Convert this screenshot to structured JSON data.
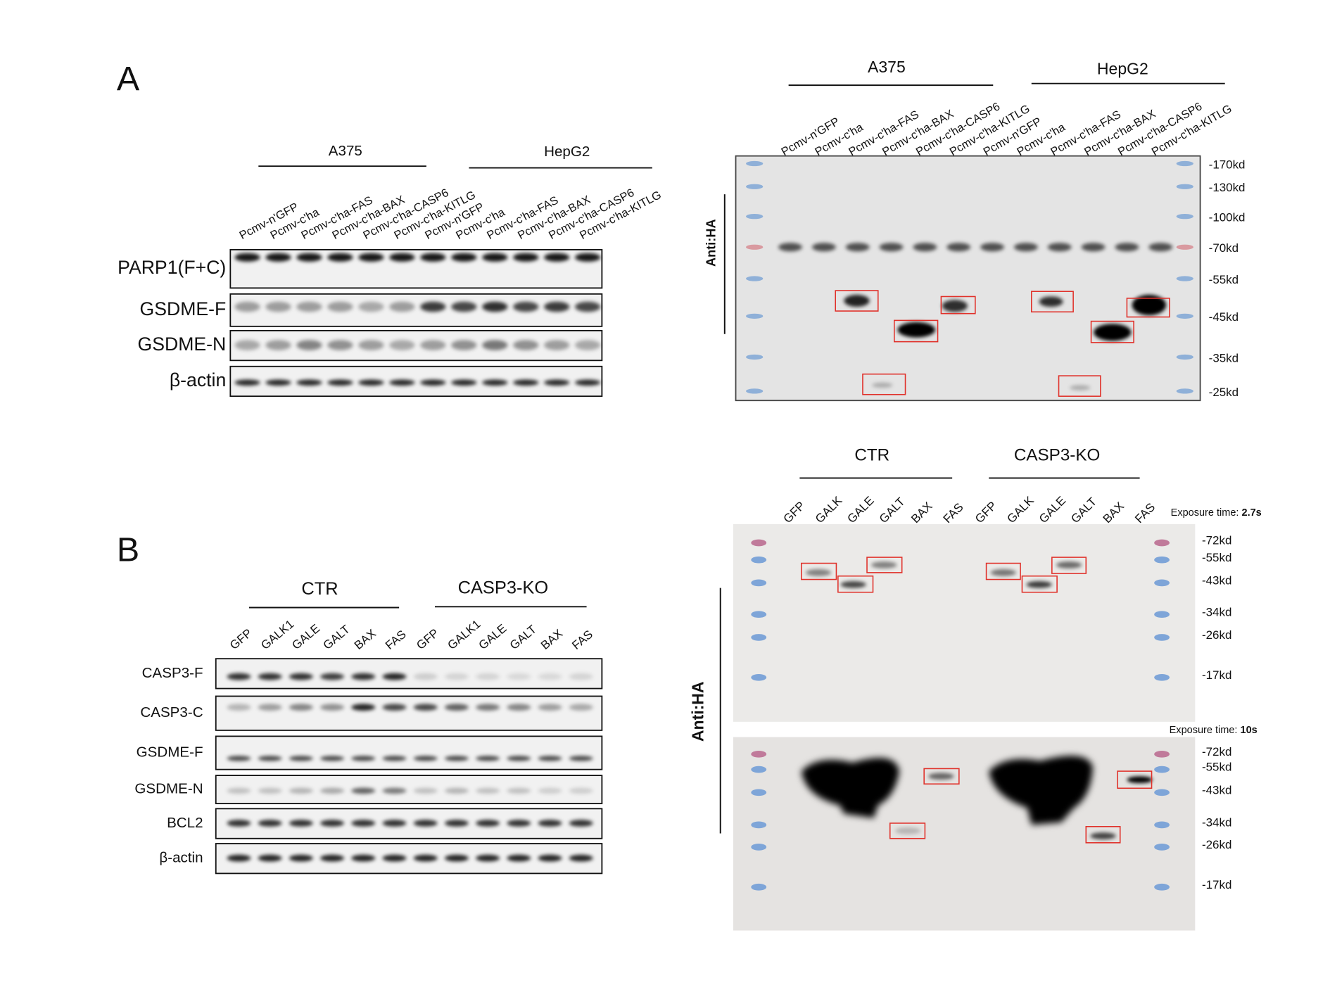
{
  "panel_a": {
    "label": "A",
    "left_blot": {
      "groups": [
        "A375",
        "HepG2"
      ],
      "lanes": [
        "Pcmv-n'GFP",
        "Pcmv-c'ha",
        "Pcmv-c'ha-FAS",
        "Pcmv-c'ha-BAX",
        "Pcmv-c'ha-CASP6",
        "Pcmv-c'ha-KITLG",
        "Pcmv-n'GFP",
        "Pcmv-c'ha",
        "Pcmv-c'ha-FAS",
        "Pcmv-c'ha-BAX",
        "Pcmv-c'ha-CASP6",
        "Pcmv-c'ha-KITLG"
      ],
      "rows": [
        "PARP1(F+C)",
        "GSDME-F",
        "GSDME-N",
        "β-actin"
      ]
    },
    "right_blot": {
      "groups": [
        "A375",
        "HepG2"
      ],
      "lanes": [
        "Pcmv-n'GFP",
        "Pcmv-c'ha",
        "Pcmv-c'ha-FAS",
        "Pcmv-c'ha-BAX",
        "Pcmv-c'ha-CASP6",
        "Pcmv-c'ha-KITLG",
        "Pcmv-n'GFP",
        "Pcmv-c'ha",
        "Pcmv-c'ha-FAS",
        "Pcmv-c'ha-BAX",
        "Pcmv-c'ha-CASP6",
        "Pcmv-c'ha-KITLG"
      ],
      "antibody": "Anti:HA",
      "markers": [
        "-170kd",
        "-130kd",
        "-100kd",
        "-70kd",
        "-55kd",
        "-45kd",
        "-35kd",
        "-25kd"
      ]
    }
  },
  "panel_b": {
    "label": "B",
    "left_blot": {
      "groups": [
        "CTR",
        "CASP3-KO"
      ],
      "lanes": [
        "GFP",
        "GALK1",
        "GALE",
        "GALT",
        "BAX",
        "FAS",
        "GFP",
        "GALK1",
        "GALE",
        "GALT",
        "BAX",
        "FAS"
      ],
      "rows": [
        "CASP3-F",
        "CASP3-C",
        "GSDME-F",
        "GSDME-N",
        "BCL2",
        "β-actin"
      ]
    },
    "right_blot": {
      "groups": [
        "CTR",
        "CASP3-KO"
      ],
      "lanes": [
        "GFP",
        "GALK",
        "GALE",
        "GALT",
        "BAX",
        "FAS",
        "GFP",
        "GALK",
        "GALE",
        "GALT",
        "BAX",
        "FAS"
      ],
      "antibody": "Anti:HA",
      "exposure_label": "Exposure time:",
      "top": {
        "exposure": "2.7s",
        "markers": [
          "-72kd",
          "-55kd",
          "-43kd",
          "-34kd",
          "-26kd",
          "-17kd"
        ]
      },
      "bottom": {
        "exposure": "10s",
        "markers": [
          "-72kd",
          "-55kd",
          "-43kd",
          "-34kd",
          "-26kd",
          "-17kd"
        ]
      }
    }
  }
}
